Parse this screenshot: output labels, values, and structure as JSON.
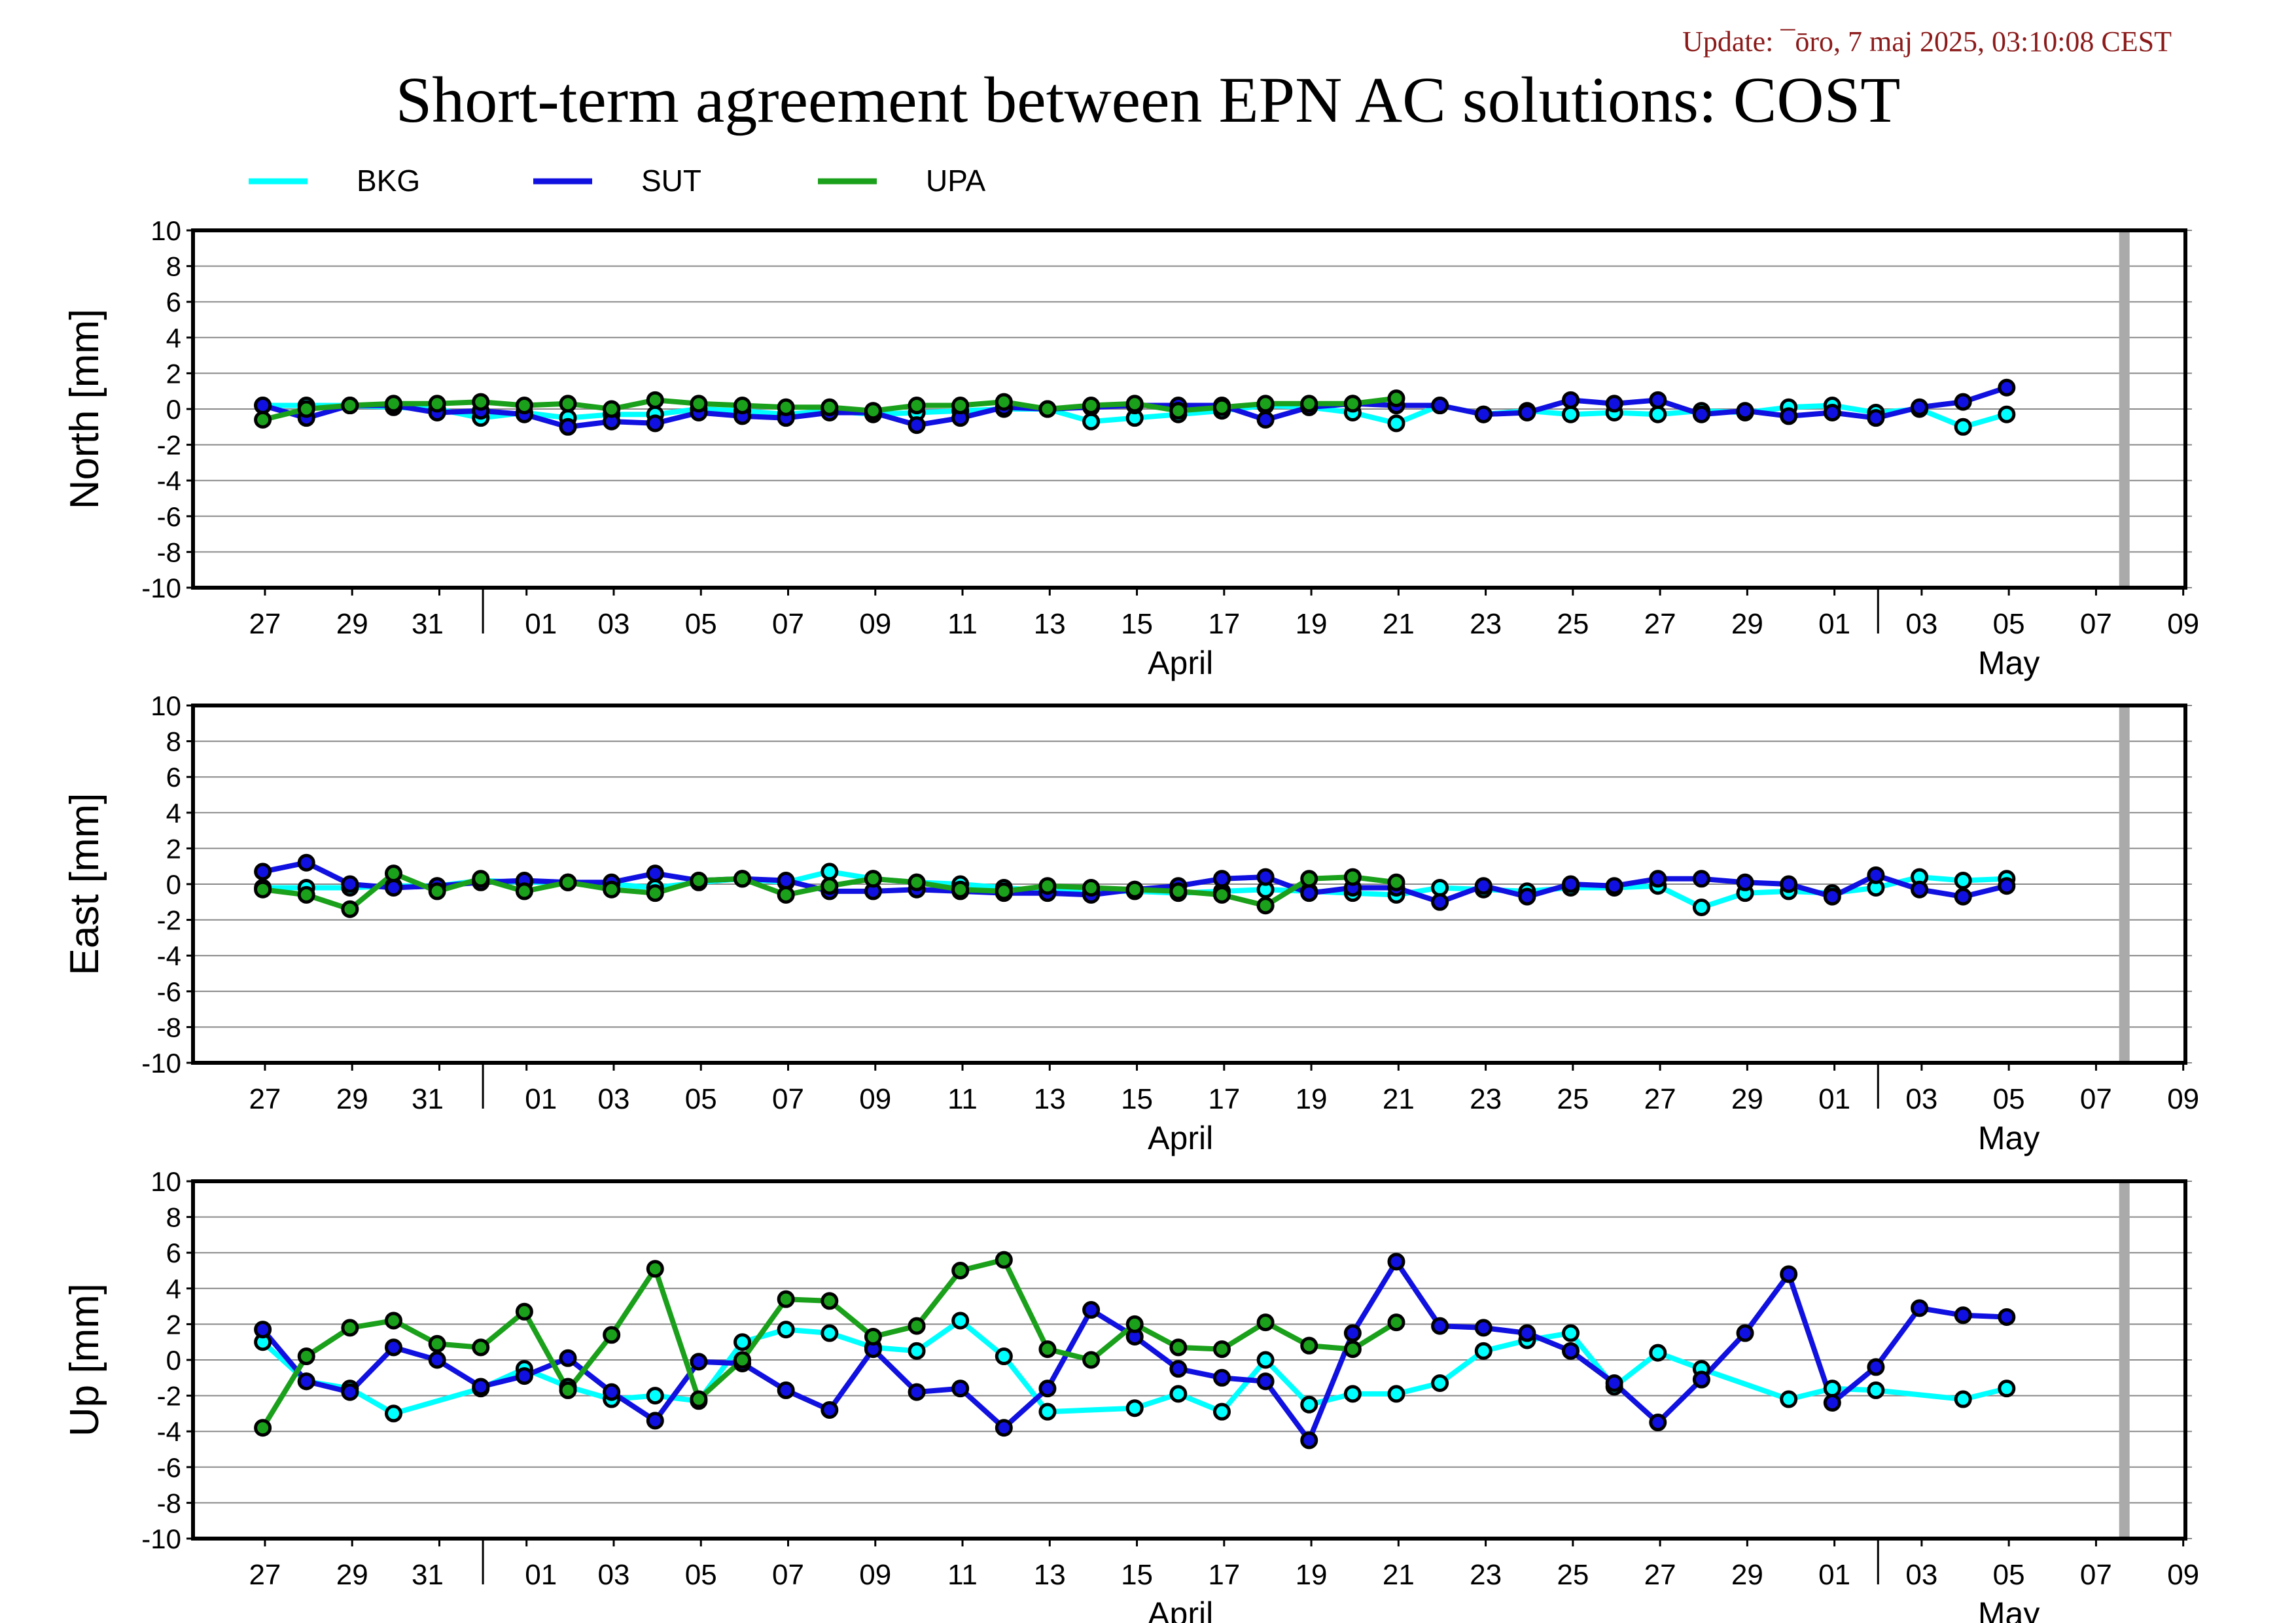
{
  "header": {
    "update": "Update: ¯ōro, 7 maj 2025, 03:10:08 CEST",
    "title": "Short-term agreement between EPN AC solutions: COST"
  },
  "colors": {
    "BKG": "#00ffff",
    "SUT": "#1010e0",
    "UPA": "#1aa01a",
    "grid": "#888888",
    "marker": "#aaaaaa"
  },
  "chart_data": {
    "type": "line",
    "x_ticks": [
      "27",
      "29",
      "31",
      "01",
      "03",
      "05",
      "07",
      "09",
      "11",
      "13",
      "15",
      "17",
      "19",
      "21",
      "23",
      "25",
      "27",
      "29",
      "01",
      "03",
      "05",
      "07",
      "09"
    ],
    "x_major": [
      {
        "label": "April"
      },
      {
        "label": "May"
      }
    ],
    "legend": [
      "BKG",
      "SUT",
      "UPA"
    ],
    "panels": [
      {
        "ylabel": "North [mm]",
        "ylim": [
          -10,
          10
        ],
        "yticks": [
          "10",
          "8",
          "6",
          "4",
          "2",
          "0",
          "-2",
          "-4",
          "-6",
          "-8",
          "-10"
        ],
        "series": [
          {
            "name": "BKG",
            "x": [
              0,
              1,
              2,
              3,
              4,
              5,
              6,
              7,
              8,
              9,
              10,
              11,
              12,
              13,
              14,
              15,
              16,
              17,
              18,
              19,
              20,
              21,
              22,
              23,
              24,
              25,
              26,
              27,
              28,
              29,
              30,
              31,
              32,
              33,
              34,
              35,
              36,
              37,
              38,
              39,
              40
            ],
            "y": [
              0.2,
              0.2,
              0.2,
              0.1,
              0.0,
              -0.5,
              -0.2,
              -0.5,
              -0.3,
              -0.3,
              0.0,
              -0.1,
              -0.3,
              -0.1,
              -0.3,
              -0.2,
              -0.1,
              0.0,
              0.0,
              -0.7,
              -0.5,
              -0.3,
              -0.1,
              0.2,
              0.1,
              -0.2,
              -0.8,
              0.2,
              -0.3,
              -0.1,
              -0.3,
              -0.2,
              -0.3,
              -0.1,
              -0.2,
              0.1,
              0.2,
              -0.2,
              0.0,
              -1.0,
              -0.3
            ]
          },
          {
            "name": "SUT",
            "x": [
              0,
              1,
              2,
              3,
              4,
              5,
              6,
              7,
              8,
              9,
              10,
              11,
              12,
              13,
              14,
              15,
              16,
              17,
              18,
              19,
              20,
              21,
              22,
              23,
              24,
              25,
              26,
              27,
              28,
              29,
              30,
              31,
              32,
              33,
              34,
              35,
              36,
              37,
              38,
              39,
              40
            ],
            "y": [
              0.2,
              -0.5,
              0.2,
              0.2,
              -0.2,
              -0.1,
              -0.3,
              -1.0,
              -0.7,
              -0.8,
              -0.2,
              -0.4,
              -0.5,
              -0.2,
              -0.2,
              -0.9,
              -0.5,
              0.1,
              0.0,
              0.1,
              0.2,
              0.2,
              0.2,
              -0.6,
              0.1,
              0.3,
              0.2,
              0.2,
              -0.3,
              -0.2,
              0.5,
              0.3,
              0.5,
              -0.3,
              -0.1,
              -0.4,
              -0.2,
              -0.5,
              0.1,
              0.4,
              1.2
            ]
          },
          {
            "name": "UPA",
            "x": [
              0,
              1,
              2,
              3,
              4,
              5,
              6,
              7,
              8,
              9,
              10,
              11,
              12,
              13,
              14,
              15,
              16,
              17,
              18,
              19,
              20,
              21,
              22,
              23,
              24,
              25,
              26
            ],
            "y": [
              -0.6,
              0.0,
              0.2,
              0.3,
              0.3,
              0.4,
              0.2,
              0.3,
              0.0,
              0.5,
              0.3,
              0.2,
              0.1,
              0.1,
              -0.1,
              0.2,
              0.2,
              0.4,
              0.0,
              0.2,
              0.3,
              -0.1,
              0.1,
              0.3,
              0.3,
              0.3,
              0.6
            ]
          }
        ]
      },
      {
        "ylabel": "East [mm]",
        "ylim": [
          -10,
          10
        ],
        "yticks": [
          "10",
          "8",
          "6",
          "4",
          "2",
          "0",
          "-2",
          "-4",
          "-6",
          "-8",
          "-10"
        ],
        "series": [
          {
            "name": "BKG",
            "x": [
              0,
              1,
              2,
              3,
              4,
              5,
              6,
              7,
              8,
              9,
              10,
              11,
              12,
              13,
              14,
              15,
              16,
              17,
              18,
              19,
              20,
              21,
              22,
              23,
              24,
              25,
              26,
              27,
              28,
              29,
              30,
              31,
              32,
              33,
              34,
              35,
              36,
              37,
              38,
              39,
              40
            ],
            "y": [
              -0.2,
              -0.2,
              -0.2,
              -0.1,
              -0.1,
              0.2,
              0.1,
              0.1,
              0.0,
              -0.2,
              0.1,
              0.3,
              0.1,
              0.7,
              0.3,
              0.1,
              0.0,
              -0.2,
              -0.4,
              -0.4,
              -0.4,
              -0.5,
              -0.4,
              -0.3,
              -0.4,
              -0.5,
              -0.6,
              -0.2,
              -0.3,
              -0.4,
              -0.2,
              -0.2,
              -0.1,
              -1.3,
              -0.5,
              -0.4,
              -0.5,
              -0.2,
              0.4,
              0.2,
              0.3
            ]
          },
          {
            "name": "SUT",
            "x": [
              0,
              1,
              2,
              3,
              4,
              5,
              6,
              7,
              8,
              9,
              10,
              11,
              12,
              13,
              14,
              15,
              16,
              17,
              18,
              19,
              20,
              21,
              22,
              23,
              24,
              25,
              26,
              27,
              28,
              29,
              30,
              31,
              32,
              33,
              34,
              35,
              36,
              37,
              38,
              39,
              40
            ],
            "y": [
              0.7,
              1.2,
              0.0,
              -0.2,
              -0.1,
              0.1,
              0.2,
              0.1,
              0.1,
              0.6,
              0.2,
              0.3,
              0.2,
              -0.4,
              -0.4,
              -0.3,
              -0.4,
              -0.5,
              -0.5,
              -0.6,
              -0.3,
              -0.1,
              0.3,
              0.4,
              -0.5,
              -0.2,
              -0.2,
              -1.0,
              -0.1,
              -0.7,
              0.0,
              -0.1,
              0.3,
              0.3,
              0.1,
              0.0,
              -0.7,
              0.5,
              -0.3,
              -0.7,
              -0.1
            ]
          },
          {
            "name": "UPA",
            "x": [
              0,
              1,
              2,
              3,
              4,
              5,
              6,
              7,
              8,
              9,
              10,
              11,
              12,
              13,
              14,
              15,
              16,
              17,
              18,
              19,
              20,
              21,
              22,
              23,
              24,
              25,
              26
            ],
            "y": [
              -0.3,
              -0.6,
              -1.4,
              0.6,
              -0.4,
              0.3,
              -0.4,
              0.1,
              -0.3,
              -0.5,
              0.2,
              0.3,
              -0.6,
              -0.1,
              0.3,
              0.1,
              -0.3,
              -0.4,
              -0.1,
              -0.2,
              -0.3,
              -0.4,
              -0.6,
              -1.2,
              0.3,
              0.4,
              0.1
            ]
          }
        ]
      },
      {
        "ylabel": "Up [mm]",
        "ylim": [
          -10,
          10
        ],
        "yticks": [
          "10",
          "8",
          "6",
          "4",
          "2",
          "0",
          "-2",
          "-4",
          "-6",
          "-8",
          "-10"
        ],
        "series": [
          {
            "name": "BKG",
            "x": [
              0,
              1,
              2,
              3,
              5,
              6,
              7,
              8,
              9,
              10,
              11,
              12,
              13,
              14,
              15,
              16,
              17,
              18,
              20,
              21,
              22,
              23,
              24,
              25,
              26,
              27,
              28,
              29,
              30,
              31,
              32,
              33,
              35,
              36,
              37,
              39,
              40
            ],
            "y": [
              1.0,
              -1.2,
              -1.6,
              -3.0,
              -1.6,
              -0.5,
              -1.5,
              -2.2,
              -2.0,
              -2.3,
              1.0,
              1.7,
              1.5,
              0.7,
              0.5,
              2.2,
              0.2,
              -2.9,
              -2.7,
              -1.9,
              -2.9,
              0.0,
              -2.5,
              -1.9,
              -1.9,
              -1.3,
              0.5,
              1.1,
              1.5,
              -1.5,
              0.4,
              -0.5,
              -2.2,
              -1.6,
              -1.7,
              -2.2,
              -1.6
            ]
          },
          {
            "name": "SUT",
            "x": [
              0,
              1,
              2,
              3,
              4,
              5,
              6,
              7,
              8,
              9,
              10,
              11,
              12,
              13,
              14,
              15,
              16,
              17,
              18,
              19,
              20,
              21,
              22,
              23,
              24,
              25,
              26,
              27,
              28,
              29,
              30,
              31,
              32,
              33,
              34,
              35,
              36,
              37,
              38,
              39,
              40
            ],
            "y": [
              1.7,
              -1.2,
              -1.8,
              0.7,
              0.0,
              -1.5,
              -0.9,
              0.1,
              -1.8,
              -3.4,
              -0.1,
              -0.2,
              -1.7,
              -2.8,
              0.6,
              -1.8,
              -1.6,
              -3.8,
              -1.6,
              2.8,
              1.3,
              -0.5,
              -1.0,
              -1.2,
              -4.5,
              1.5,
              5.5,
              1.9,
              1.8,
              1.5,
              0.5,
              -1.3,
              -3.5,
              -1.1,
              1.5,
              4.8,
              -2.4,
              -0.4,
              2.9,
              2.5,
              2.4
            ]
          },
          {
            "name": "UPA",
            "x": [
              0,
              1,
              2,
              3,
              4,
              5,
              6,
              7,
              8,
              9,
              10,
              11,
              12,
              13,
              14,
              15,
              16,
              17,
              18,
              19,
              20,
              21,
              22,
              23,
              24,
              25,
              26
            ],
            "y": [
              -3.8,
              0.2,
              1.8,
              2.2,
              0.9,
              0.7,
              2.7,
              -1.7,
              1.4,
              5.1,
              -2.2,
              0.0,
              3.4,
              3.3,
              1.3,
              1.9,
              5.0,
              5.6,
              0.6,
              0.0,
              2.0,
              0.7,
              0.6,
              2.1,
              0.8,
              0.6,
              2.1
            ]
          }
        ]
      }
    ]
  }
}
